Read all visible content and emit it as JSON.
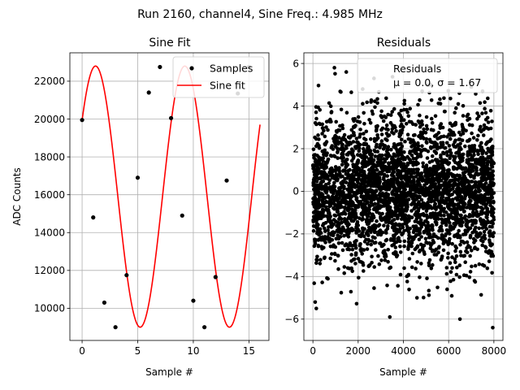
{
  "suptitle": "Run 2160, channel4, Sine Freq.: 4.985 MHz",
  "chart_data": [
    {
      "type": "line",
      "title": "Sine Fit",
      "xlabel": "Sample #",
      "ylabel": "ADC Counts",
      "xlim": [
        -1.1,
        16.8
      ],
      "ylim": [
        8300,
        23500
      ],
      "xticks": [
        0,
        5,
        10,
        15
      ],
      "yticks": [
        10000,
        12000,
        14000,
        16000,
        18000,
        20000,
        22000
      ],
      "grid": true,
      "legend": {
        "placement": "top-right",
        "entries": [
          "Samples",
          "Sine fit"
        ]
      },
      "series": [
        {
          "name": "Samples",
          "kind": "scatter",
          "color": "#000000",
          "x": [
            0,
            1,
            2,
            3,
            4,
            5,
            6,
            7,
            8,
            9,
            10,
            11,
            12,
            13,
            14,
            15,
            16
          ],
          "y": [
            19950,
            14800,
            10300,
            9000,
            11750,
            16900,
            21400,
            22750,
            20050,
            14900,
            10400,
            9000,
            11650,
            16750,
            21350,
            22750,
            null
          ]
        },
        {
          "name": "Sine fit",
          "kind": "line",
          "color": "#ff0000",
          "fit": {
            "amplitude": 6900,
            "offset": 15900,
            "frequency": 0.1246,
            "phase": 0.6245,
            "x_range": [
              0,
              16
            ]
          }
        }
      ]
    },
    {
      "type": "scatter",
      "title": "Residuals",
      "xlabel": "Sample #",
      "ylabel": "",
      "xlim": [
        -400,
        8400
      ],
      "ylim": [
        -7.0,
        6.5
      ],
      "xticks": [
        0,
        2000,
        4000,
        6000,
        8000
      ],
      "yticks": [
        -6,
        -4,
        -2,
        0,
        2,
        4,
        6
      ],
      "grid": true,
      "legend": {
        "placement": "top-right",
        "entries": [
          "Residuals",
          "μ = 0.0, σ = 1.67"
        ]
      },
      "series": [
        {
          "name": "Residuals",
          "color": "#000000",
          "n_points": 8000,
          "x_range": [
            0,
            8000
          ],
          "mean": 0.0,
          "sigma": 1.67,
          "outliers": [
            [
              950,
              5.8
            ],
            [
              2200,
              4.8
            ],
            [
              7000,
              4.9
            ],
            [
              7500,
              4.7
            ],
            [
              150,
              -5.5
            ],
            [
              3400,
              -5.9
            ],
            [
              6500,
              -6.0
            ],
            [
              7950,
              -6.4
            ],
            [
              100,
              -5.2
            ],
            [
              2700,
              5.3
            ],
            [
              4600,
              -5.0
            ],
            [
              5200,
              5.0
            ]
          ]
        }
      ]
    }
  ]
}
